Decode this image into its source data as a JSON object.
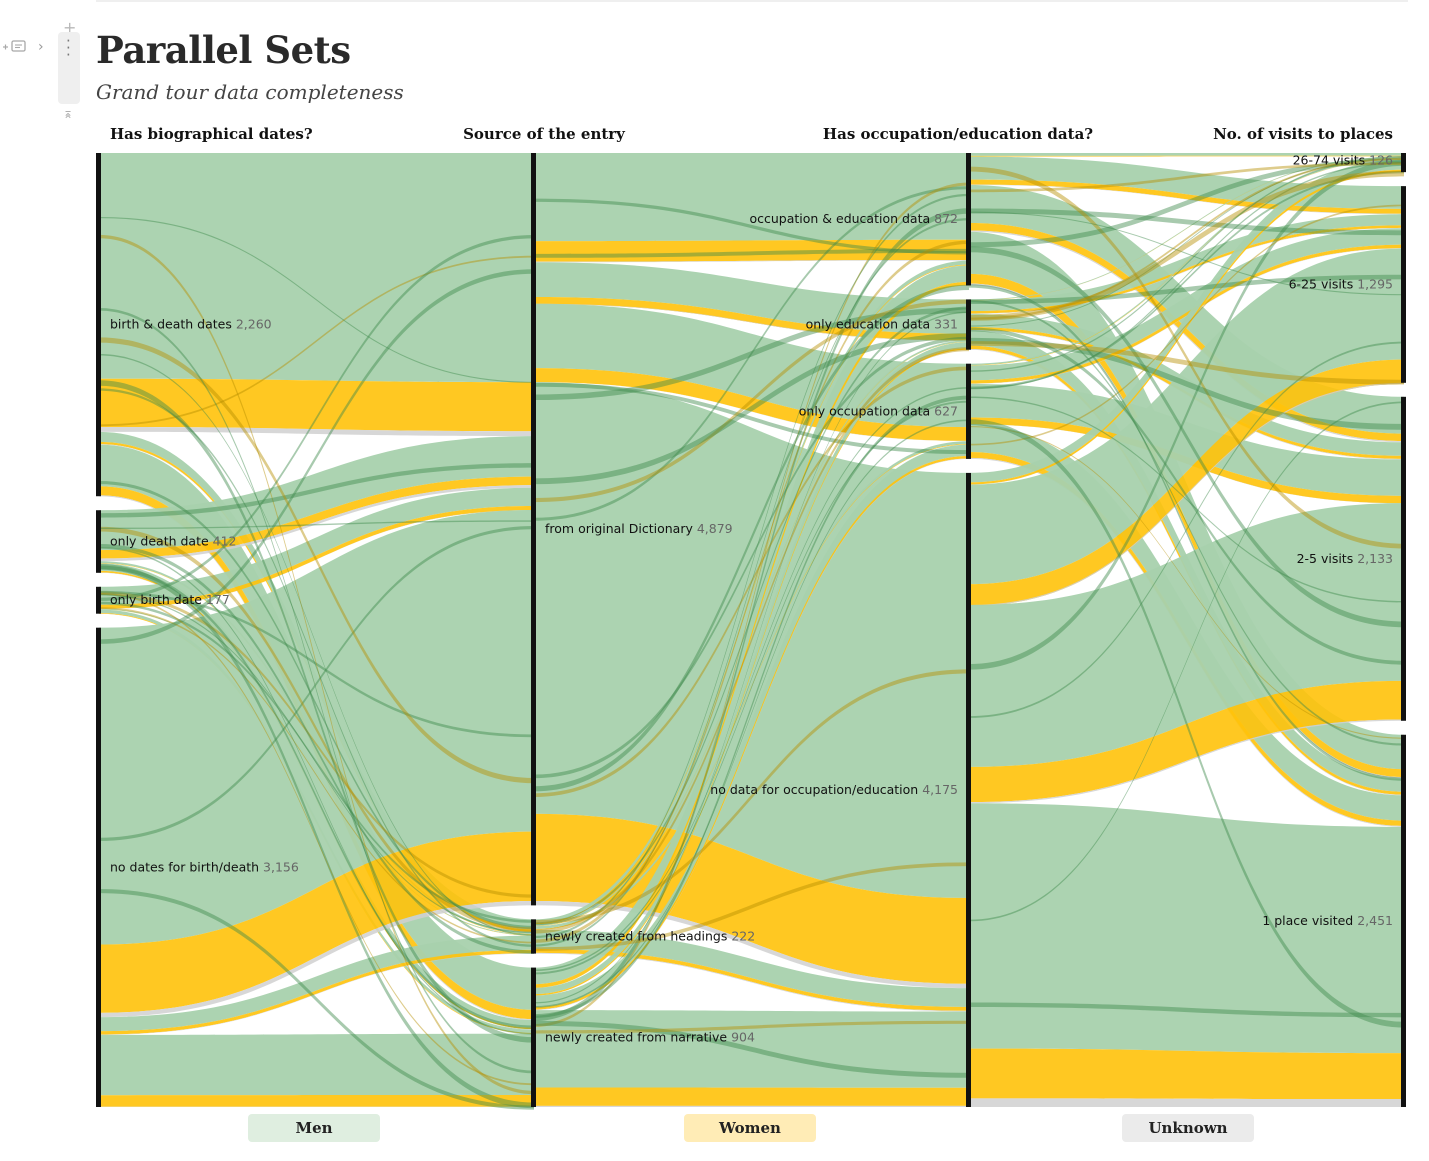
{
  "title": "Parallel Sets",
  "subtitle": "Grand tour data completeness",
  "colors": {
    "men": "#a8d1ad",
    "men_link": "#7fbf8a",
    "women": "#ffc20a",
    "unknown": "#d0d0d0",
    "axis": "#111111",
    "men_legend_bg": "#dfeee0",
    "women_legend_bg": "#ffecb6",
    "unknown_legend_bg": "#ebebeb"
  },
  "chart_data": {
    "type": "parallel-sets",
    "title": "Parallel Sets",
    "subtitle": "Grand tour data completeness",
    "total": 6005,
    "dimensions": [
      {
        "name": "Has biographical dates?",
        "categories": [
          {
            "label": "birth & death dates",
            "count": 2260
          },
          {
            "label": "only death date",
            "count": 412
          },
          {
            "label": "only birth date",
            "count": 177
          },
          {
            "label": "no dates for birth/death",
            "count": 3156
          }
        ]
      },
      {
        "name": "Source of the entry",
        "categories": [
          {
            "label": "from original Dictionary",
            "count": 4879
          },
          {
            "label": "newly created from headings",
            "count": 222
          },
          {
            "label": "newly created from narrative",
            "count": 904
          }
        ]
      },
      {
        "name": "Has occupation/education data?",
        "categories": [
          {
            "label": "occupation & education data",
            "count": 872
          },
          {
            "label": "only education data",
            "count": 331
          },
          {
            "label": "only occupation data",
            "count": 627
          },
          {
            "label": "no data for occupation/education",
            "count": 4175
          }
        ]
      },
      {
        "name": "No. of visits to places",
        "categories": [
          {
            "label": "26-74 visits",
            "count": 126
          },
          {
            "label": "6-25 visits",
            "count": 1295
          },
          {
            "label": "2-5 visits",
            "count": 2133
          },
          {
            "label": "1 place visited",
            "count": 2451
          }
        ]
      }
    ],
    "legend": [
      {
        "label": "Men",
        "key": "men"
      },
      {
        "label": "Women",
        "key": "women"
      },
      {
        "label": "Unknown",
        "key": "unknown"
      }
    ]
  }
}
